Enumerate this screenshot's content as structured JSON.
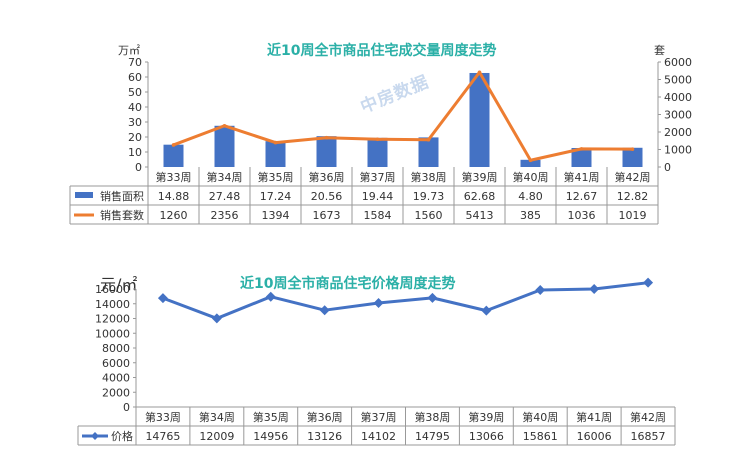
{
  "watermark": "中房数据",
  "chart_data": [
    {
      "type": "bar+line",
      "title": "近10周全市商品住宅成交量周度走势",
      "ylabel_left": "万㎡",
      "ylabel_right": "套",
      "ylim_left": [
        0,
        70
      ],
      "ylim_right": [
        0,
        6000
      ],
      "yticks_left": [
        "0",
        "10",
        "20",
        "30",
        "40",
        "50",
        "60",
        "70"
      ],
      "yticks_right": [
        "0",
        "1000",
        "2000",
        "3000",
        "4000",
        "5000",
        "6000"
      ],
      "categories": [
        "第33周",
        "第34周",
        "第35周",
        "第36周",
        "第37周",
        "第38周",
        "第39周",
        "第40周",
        "第41周",
        "第42周"
      ],
      "series": [
        {
          "name": "销售面积",
          "type": "bar",
          "axis": "left",
          "color": "#4472c4",
          "values": [
            14.88,
            27.48,
            17.24,
            20.56,
            19.44,
            19.73,
            62.68,
            4.8,
            12.67,
            12.82
          ],
          "labels": [
            "14.88",
            "27.48",
            "17.24",
            "20.56",
            "19.44",
            "19.73",
            "62.68",
            "4.80",
            "12.67",
            "12.82"
          ]
        },
        {
          "name": "销售套数",
          "type": "line",
          "axis": "right",
          "color": "#ed7d31",
          "values": [
            1260,
            2356,
            1394,
            1673,
            1584,
            1560,
            5413,
            385,
            1036,
            1019
          ],
          "labels": [
            "1260",
            "2356",
            "1394",
            "1673",
            "1584",
            "1560",
            "5413",
            "385",
            "1036",
            "1019"
          ]
        }
      ],
      "legend": "data-table"
    },
    {
      "type": "line",
      "title": "近10周全市商品住宅价格周度走势",
      "ylabel": "元/㎡",
      "ylim": [
        0,
        16000
      ],
      "yticks": [
        "0",
        "2000",
        "4000",
        "6000",
        "8000",
        "10000",
        "12000",
        "14000",
        "16000"
      ],
      "categories": [
        "第33周",
        "第34周",
        "第35周",
        "第36周",
        "第37周",
        "第38周",
        "第39周",
        "第40周",
        "第41周",
        "第42周"
      ],
      "series": [
        {
          "name": "价格",
          "type": "line",
          "color": "#4472c4",
          "values": [
            14765,
            12009,
            14956,
            13126,
            14102,
            14795,
            13066,
            15861,
            16006,
            16857
          ],
          "labels": [
            "14765",
            "12009",
            "14956",
            "13126",
            "14102",
            "14795",
            "13066",
            "15861",
            "16006",
            "16857"
          ]
        }
      ],
      "legend": "data-table"
    }
  ]
}
